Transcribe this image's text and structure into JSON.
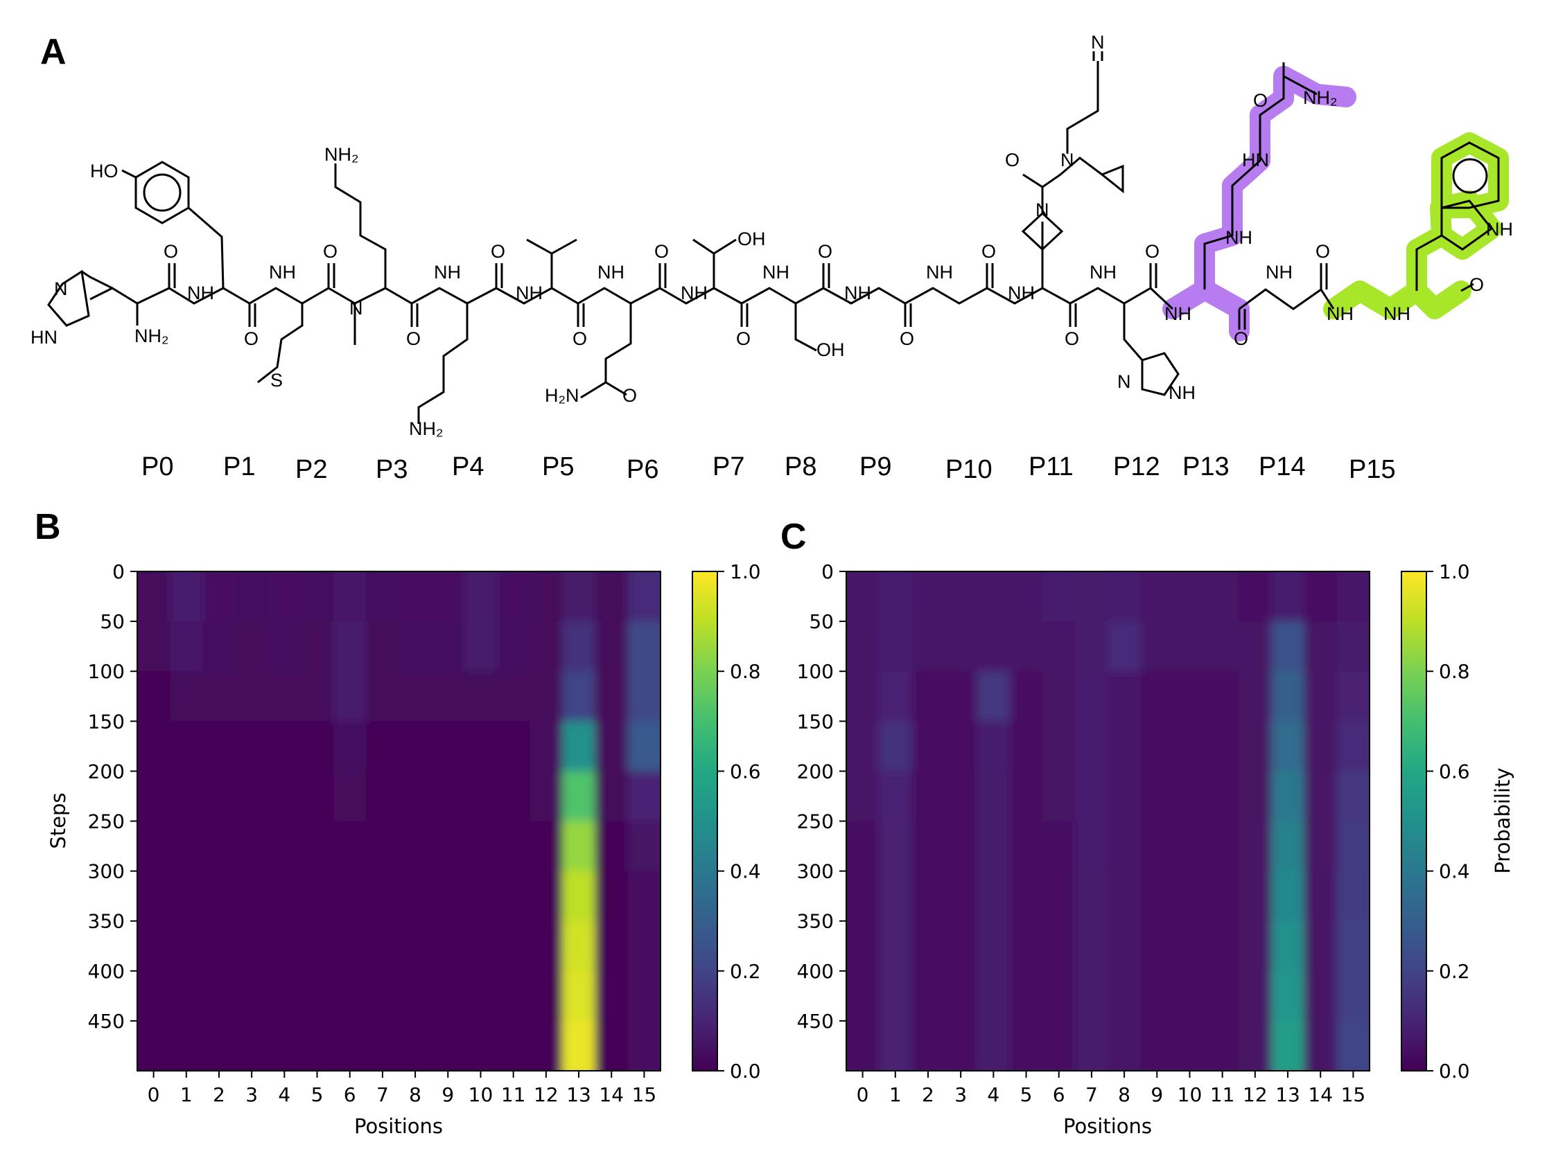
{
  "panels": {
    "A": "A",
    "B": "B",
    "C": "C"
  },
  "residue_labels": [
    "P0",
    "P1",
    "P2",
    "P3",
    "P4",
    "P5",
    "P6",
    "P7",
    "P8",
    "P9",
    "P10",
    "P11",
    "P12",
    "P13",
    "P14",
    "P15"
  ],
  "highlight_colors": {
    "P13": "#b77cf0",
    "P15": "#a8e62a"
  },
  "atom_labels": {
    "HO": "HO",
    "NH2": "NH₂",
    "N": "N",
    "H": "H",
    "O": "O",
    "S": "S",
    "OH": "OH",
    "HN": "HN",
    "NH": "NH",
    "H2N": "H₂N",
    "NC": "N"
  },
  "chart_data": [
    {
      "type": "heatmap",
      "panel": "B",
      "title": "",
      "xlabel": "Positions",
      "ylabel": "Steps",
      "x_ticks": [
        "0",
        "1",
        "2",
        "3",
        "4",
        "5",
        "6",
        "7",
        "8",
        "9",
        "10",
        "11",
        "12",
        "13",
        "14",
        "15"
      ],
      "y_ticks": [
        0,
        50,
        100,
        150,
        200,
        250,
        300,
        350,
        400,
        450
      ],
      "ylim": [
        0,
        500
      ],
      "colorbar": {
        "label": "",
        "ticks": [
          "0.0",
          "0.2",
          "0.4",
          "0.6",
          "0.8",
          "1.0"
        ],
        "range": [
          0,
          1
        ]
      },
      "colormap": "viridis",
      "steps": [
        0,
        50,
        100,
        150,
        200,
        250,
        300,
        350,
        400,
        450,
        500
      ],
      "values": [
        [
          0.02,
          0.08,
          0.04,
          0.03,
          0.04,
          0.03,
          0.06,
          0.03,
          0.04,
          0.04,
          0.07,
          0.04,
          0.02,
          0.07,
          0.02,
          0.12
        ],
        [
          0.02,
          0.06,
          0.03,
          0.02,
          0.03,
          0.02,
          0.07,
          0.02,
          0.03,
          0.03,
          0.07,
          0.03,
          0.02,
          0.14,
          0.02,
          0.22
        ],
        [
          0.01,
          0.02,
          0.02,
          0.02,
          0.02,
          0.02,
          0.07,
          0.02,
          0.02,
          0.02,
          0.02,
          0.02,
          0.02,
          0.2,
          0.02,
          0.22
        ],
        [
          0.01,
          0.01,
          0.01,
          0.01,
          0.01,
          0.01,
          0.03,
          0.01,
          0.01,
          0.01,
          0.01,
          0.01,
          0.02,
          0.5,
          0.02,
          0.28
        ],
        [
          0.01,
          0.01,
          0.01,
          0.01,
          0.01,
          0.01,
          0.02,
          0.01,
          0.01,
          0.01,
          0.01,
          0.01,
          0.02,
          0.72,
          0.02,
          0.1
        ],
        [
          0.01,
          0.01,
          0.01,
          0.01,
          0.01,
          0.01,
          0.01,
          0.01,
          0.01,
          0.01,
          0.01,
          0.01,
          0.01,
          0.84,
          0.01,
          0.05
        ],
        [
          0.01,
          0.01,
          0.01,
          0.01,
          0.01,
          0.01,
          0.01,
          0.01,
          0.01,
          0.01,
          0.01,
          0.01,
          0.01,
          0.9,
          0.01,
          0.04
        ],
        [
          0.01,
          0.01,
          0.01,
          0.01,
          0.01,
          0.01,
          0.01,
          0.01,
          0.01,
          0.01,
          0.01,
          0.01,
          0.01,
          0.93,
          0.01,
          0.04
        ],
        [
          0.01,
          0.01,
          0.01,
          0.01,
          0.01,
          0.01,
          0.01,
          0.01,
          0.01,
          0.01,
          0.01,
          0.01,
          0.01,
          0.95,
          0.01,
          0.04
        ],
        [
          0.01,
          0.01,
          0.01,
          0.01,
          0.01,
          0.01,
          0.01,
          0.01,
          0.01,
          0.01,
          0.01,
          0.01,
          0.01,
          0.97,
          0.01,
          0.04
        ],
        [
          0.01,
          0.01,
          0.01,
          0.01,
          0.01,
          0.01,
          0.01,
          0.01,
          0.01,
          0.01,
          0.01,
          0.01,
          0.01,
          0.98,
          0.01,
          0.04
        ]
      ]
    },
    {
      "type": "heatmap",
      "panel": "C",
      "title": "",
      "xlabel": "Positions",
      "ylabel": "",
      "x_ticks": [
        "0",
        "1",
        "2",
        "3",
        "4",
        "5",
        "6",
        "7",
        "8",
        "9",
        "10",
        "11",
        "12",
        "13",
        "14",
        "15"
      ],
      "y_ticks": [
        0,
        50,
        100,
        150,
        200,
        250,
        300,
        350,
        400,
        450
      ],
      "ylim": [
        0,
        500
      ],
      "colorbar": {
        "label": "Probability",
        "ticks": [
          "0.0",
          "0.2",
          "0.4",
          "0.6",
          "0.8",
          "1.0"
        ],
        "range": [
          0,
          1
        ]
      },
      "colormap": "viridis",
      "steps": [
        0,
        50,
        100,
        150,
        200,
        250,
        300,
        350,
        400,
        450,
        500
      ],
      "values": [
        [
          0.06,
          0.08,
          0.06,
          0.06,
          0.06,
          0.06,
          0.08,
          0.07,
          0.08,
          0.06,
          0.05,
          0.05,
          0.04,
          0.08,
          0.04,
          0.06
        ],
        [
          0.05,
          0.08,
          0.05,
          0.05,
          0.06,
          0.05,
          0.06,
          0.07,
          0.12,
          0.05,
          0.05,
          0.05,
          0.05,
          0.25,
          0.05,
          0.07
        ],
        [
          0.05,
          0.1,
          0.04,
          0.04,
          0.16,
          0.04,
          0.05,
          0.08,
          0.06,
          0.04,
          0.04,
          0.04,
          0.05,
          0.3,
          0.05,
          0.09
        ],
        [
          0.05,
          0.14,
          0.04,
          0.04,
          0.08,
          0.04,
          0.05,
          0.08,
          0.06,
          0.04,
          0.04,
          0.04,
          0.05,
          0.35,
          0.05,
          0.12
        ],
        [
          0.05,
          0.1,
          0.04,
          0.04,
          0.07,
          0.04,
          0.05,
          0.08,
          0.06,
          0.04,
          0.04,
          0.04,
          0.05,
          0.4,
          0.05,
          0.16
        ],
        [
          0.04,
          0.09,
          0.04,
          0.04,
          0.07,
          0.04,
          0.04,
          0.08,
          0.06,
          0.04,
          0.04,
          0.04,
          0.05,
          0.44,
          0.05,
          0.17
        ],
        [
          0.04,
          0.09,
          0.04,
          0.04,
          0.07,
          0.04,
          0.04,
          0.07,
          0.06,
          0.04,
          0.04,
          0.04,
          0.05,
          0.47,
          0.05,
          0.18
        ],
        [
          0.04,
          0.09,
          0.04,
          0.04,
          0.07,
          0.04,
          0.04,
          0.07,
          0.06,
          0.04,
          0.04,
          0.04,
          0.05,
          0.5,
          0.05,
          0.19
        ],
        [
          0.04,
          0.09,
          0.04,
          0.04,
          0.07,
          0.04,
          0.04,
          0.07,
          0.06,
          0.04,
          0.04,
          0.04,
          0.05,
          0.52,
          0.05,
          0.19
        ],
        [
          0.04,
          0.09,
          0.04,
          0.04,
          0.07,
          0.04,
          0.04,
          0.07,
          0.06,
          0.04,
          0.04,
          0.04,
          0.05,
          0.55,
          0.05,
          0.2
        ],
        [
          0.04,
          0.09,
          0.04,
          0.04,
          0.07,
          0.04,
          0.04,
          0.07,
          0.06,
          0.04,
          0.04,
          0.04,
          0.05,
          0.56,
          0.05,
          0.2
        ]
      ]
    }
  ]
}
